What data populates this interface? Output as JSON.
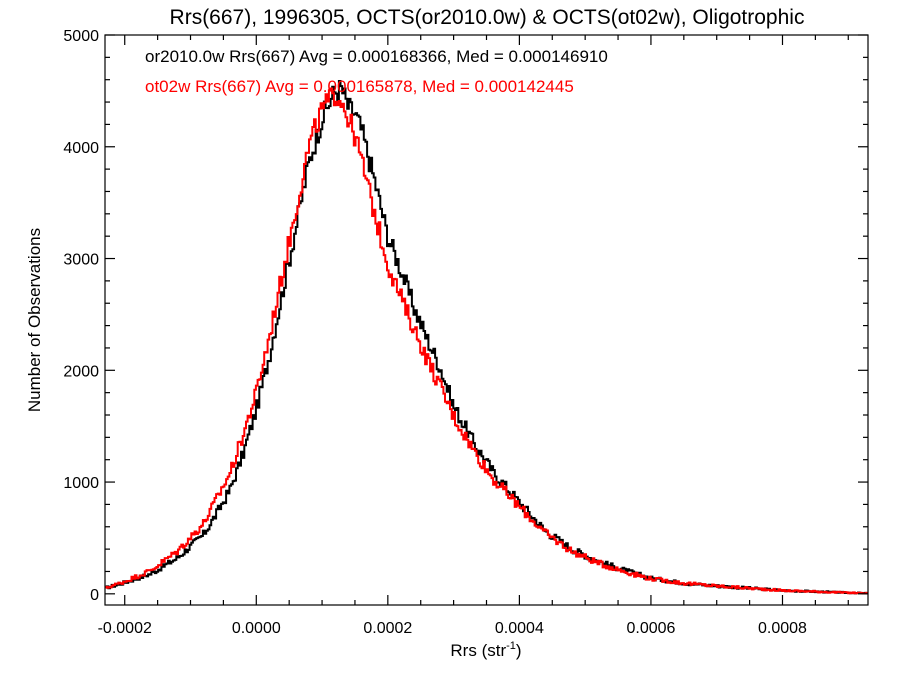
{
  "chart_data": {
    "type": "line",
    "title": "Rrs(667), 1996305, OCTS(or2010.0w) & OCTS(ot02w), Oligotrophic",
    "xlabel": "Rrs (str",
    "xlabel_sup": "-1",
    "xlabel_close": ")",
    "ylabel": "Number of Observations",
    "xlim": [
      -0.00023,
      0.00093
    ],
    "ylim": [
      -100,
      5000
    ],
    "xticks": [
      {
        "value": -0.0002,
        "label": "-0.0002"
      },
      {
        "value": 0.0,
        "label": "0.0000"
      },
      {
        "value": 0.0002,
        "label": "0.0002"
      },
      {
        "value": 0.0004,
        "label": "0.0004"
      },
      {
        "value": 0.0006,
        "label": "0.0006"
      },
      {
        "value": 0.0008,
        "label": "0.0008"
      }
    ],
    "yticks": [
      {
        "value": 0,
        "label": "0"
      },
      {
        "value": 1000,
        "label": "1000"
      },
      {
        "value": 2000,
        "label": "2000"
      },
      {
        "value": 3000,
        "label": "3000"
      },
      {
        "value": 4000,
        "label": "4000"
      },
      {
        "value": 5000,
        "label": "5000"
      }
    ],
    "grid": false,
    "step": true,
    "annotations": [
      {
        "text": "or2010.0w Rrs(667) Avg = 0.000168366, Med = 0.000146910",
        "color": "#000000"
      },
      {
        "text": "ot02w Rrs(667) Avg = 0.000165878, Med = 0.000142445",
        "color": "#ff0000"
      }
    ],
    "series": [
      {
        "name": "or2010.0w",
        "color": "#000000",
        "x": [
          -0.00023,
          -0.0002,
          -0.00016,
          -0.00012,
          -8e-05,
          -6e-05,
          -4e-05,
          -2e-05,
          0.0,
          2e-05,
          4e-05,
          6e-05,
          8e-05,
          0.0001,
          0.00011,
          0.00012,
          0.00013,
          0.00014,
          0.00015,
          0.00016,
          0.00018,
          0.0002,
          0.00022,
          0.00024,
          0.00026,
          0.00028,
          0.0003,
          0.00033,
          0.00036,
          0.0004,
          0.00044,
          0.00048,
          0.00052,
          0.00056,
          0.0006,
          0.00065,
          0.0007,
          0.00075,
          0.0008,
          0.00085,
          0.0009,
          0.00093
        ],
        "y": [
          50,
          100,
          180,
          320,
          530,
          720,
          930,
          1250,
          1650,
          2130,
          2700,
          3270,
          3860,
          4250,
          4380,
          4500,
          4520,
          4350,
          4300,
          4150,
          3700,
          3200,
          2900,
          2560,
          2280,
          2020,
          1680,
          1360,
          1090,
          820,
          560,
          400,
          290,
          210,
          140,
          95,
          70,
          50,
          30,
          20,
          10,
          5
        ]
      },
      {
        "name": "ot02w",
        "color": "#ff0000",
        "x": [
          -0.00023,
          -0.0002,
          -0.00016,
          -0.00012,
          -8e-05,
          -6e-05,
          -4e-05,
          -2e-05,
          0.0,
          2e-05,
          4e-05,
          6e-05,
          8e-05,
          0.0001,
          0.00011,
          0.00012,
          0.00013,
          0.00014,
          0.00015,
          0.00016,
          0.00018,
          0.0002,
          0.00022,
          0.00024,
          0.00026,
          0.00028,
          0.0003,
          0.00033,
          0.00036,
          0.0004,
          0.00044,
          0.00048,
          0.00052,
          0.00056,
          0.0006,
          0.00065,
          0.0007,
          0.00075,
          0.0008,
          0.00085,
          0.0009,
          0.00093
        ],
        "y": [
          50,
          110,
          210,
          380,
          630,
          850,
          1080,
          1420,
          1800,
          2300,
          2870,
          3430,
          4000,
          4330,
          4400,
          4480,
          4420,
          4250,
          4100,
          3880,
          3400,
          2950,
          2650,
          2370,
          2100,
          1850,
          1590,
          1290,
          1030,
          780,
          540,
          380,
          275,
          200,
          135,
          95,
          70,
          50,
          30,
          20,
          10,
          5
        ]
      }
    ]
  }
}
